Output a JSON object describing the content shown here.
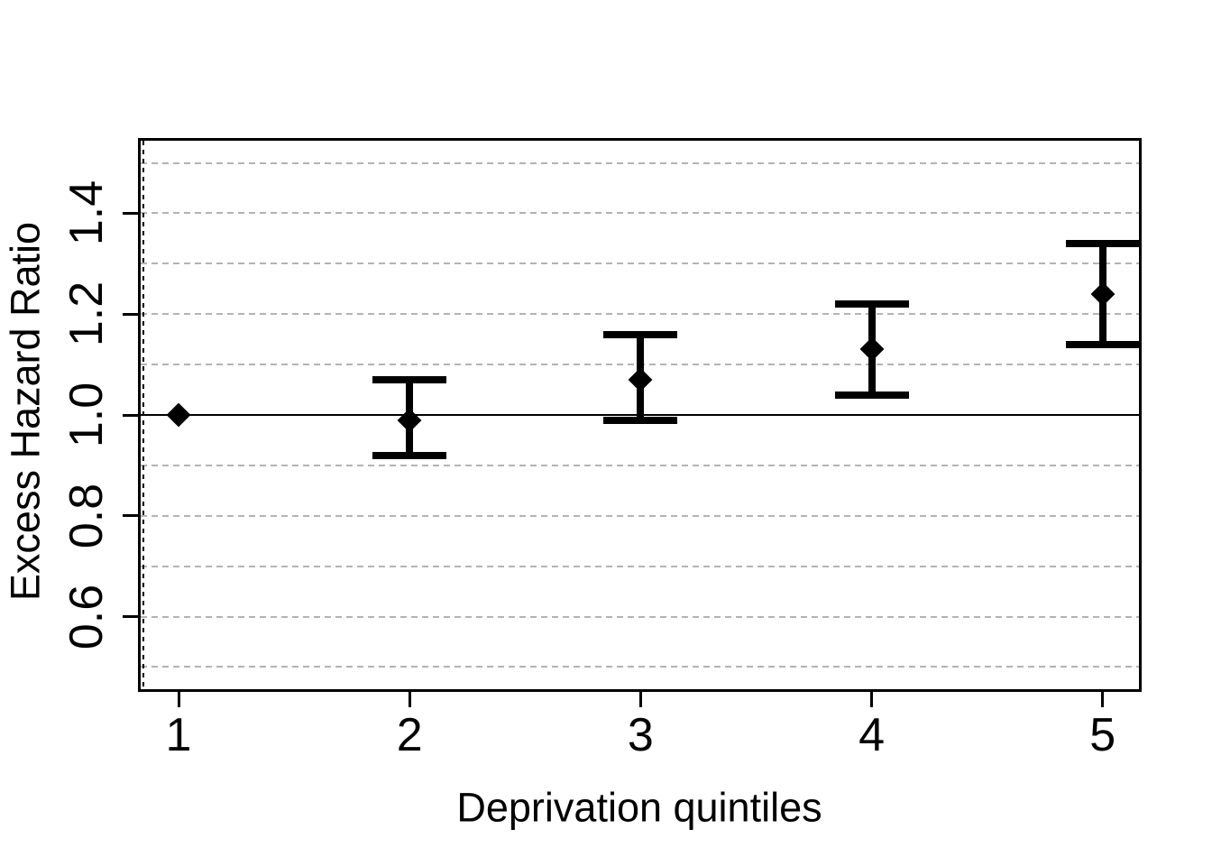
{
  "chart_data": {
    "type": "scatter",
    "subtype": "point-estimates-with-error-bars",
    "title": "",
    "xlabel": "Deprivation quintiles",
    "ylabel": "Excess Hazard Ratio",
    "xlim": [
      0.836,
      5.157
    ],
    "ylim": [
      0.456,
      1.544
    ],
    "x_ticks": [
      {
        "value": 1,
        "label": "1"
      },
      {
        "value": 2,
        "label": "2"
      },
      {
        "value": 3,
        "label": "3"
      },
      {
        "value": 4,
        "label": "4"
      },
      {
        "value": 5,
        "label": "5"
      }
    ],
    "y_ticks": [
      {
        "value": 0.6,
        "label": "0.6"
      },
      {
        "value": 0.8,
        "label": "0.8"
      },
      {
        "value": 1.0,
        "label": "1.0"
      },
      {
        "value": 1.2,
        "label": "1.2"
      },
      {
        "value": 1.4,
        "label": "1.4"
      }
    ],
    "gridlines_y": [
      0.5,
      0.6,
      0.7,
      0.8,
      0.9,
      1.0,
      1.1,
      1.2,
      1.3,
      1.4,
      1.5
    ],
    "grid_style": "dashed-horizontal",
    "legend": "none",
    "reference_line_y": 1.0,
    "categories": [
      "1",
      "2",
      "3",
      "4",
      "5"
    ],
    "points": [
      {
        "x": 1,
        "est": 1.0,
        "lo": null,
        "hi": null
      },
      {
        "x": 2,
        "est": 0.99,
        "lo": 0.92,
        "hi": 1.07
      },
      {
        "x": 3,
        "est": 1.07,
        "lo": 0.99,
        "hi": 1.16
      },
      {
        "x": 4,
        "est": 1.13,
        "lo": 1.04,
        "hi": 1.22
      },
      {
        "x": 5,
        "est": 1.24,
        "lo": 1.14,
        "hi": 1.34
      }
    ],
    "marker": "filled-diamond",
    "colors": {
      "background": "#ffffff",
      "axis": "#000000",
      "points": "#000000",
      "error_bars": "#000000",
      "gridlines": "#b3b3b3",
      "text": "#000000"
    }
  }
}
